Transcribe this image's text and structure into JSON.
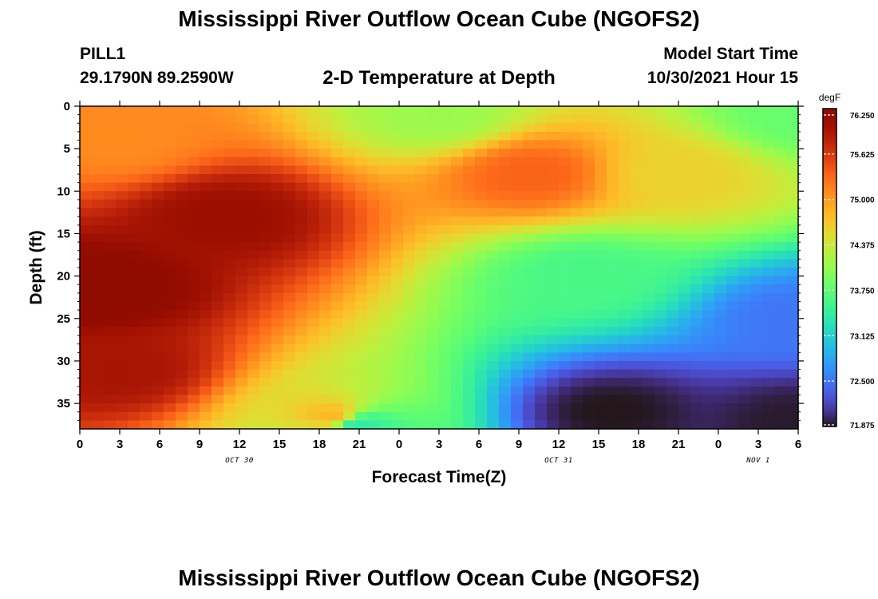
{
  "header": {
    "title": "Mississippi River Outflow Ocean Cube (NGOFS2)",
    "station_id": "PILL1",
    "coordinates": "29.1790N  89.2590W",
    "model_start_label": "Model Start Time",
    "model_start_value": "10/30/2021 Hour 15"
  },
  "footer": {
    "title": "Mississippi River Outflow Ocean Cube (NGOFS2)"
  },
  "chart_data": {
    "type": "heatmap",
    "title": "2-D Temperature at Depth",
    "xlabel": "Forecast Time(Z)",
    "ylabel": "Depth (ft)",
    "x_ticks": [
      "0",
      "3",
      "6",
      "9",
      "12",
      "15",
      "18",
      "21",
      "0",
      "3",
      "6",
      "9",
      "12",
      "15",
      "18",
      "21",
      "0",
      "3",
      "6"
    ],
    "x_range_hours_from_oct30_00z": [
      0,
      54
    ],
    "date_labels": [
      {
        "label": "OCT 30",
        "hour": 12
      },
      {
        "label": "OCT 31",
        "hour": 36
      },
      {
        "label": "NOV 1",
        "hour": 51
      }
    ],
    "y_ticks": [
      0,
      5,
      10,
      15,
      20,
      25,
      30,
      35
    ],
    "ylim": [
      0,
      38
    ],
    "y_inverted": true,
    "colorbar": {
      "unit": "degF",
      "min": 71.875,
      "max": 76.25,
      "ticks": [
        "76.250",
        "75.625",
        "75.000",
        "74.375",
        "73.750",
        "73.125",
        "72.500",
        "71.875"
      ],
      "colormap": "turbo"
    },
    "features": [
      {
        "hour": 1.5,
        "depth": 21.5,
        "temp": 76.25
      },
      {
        "hour": 3.0,
        "depth": 4.0,
        "temp": 75.1
      },
      {
        "hour": 11.0,
        "depth": 13.0,
        "temp": 76.05
      },
      {
        "hour": 3.0,
        "depth": 31.0,
        "temp": 75.95
      },
      {
        "hour": 19.0,
        "depth": 36.5,
        "temp": 74.8
      },
      {
        "hour": 21.0,
        "depth": 37.5,
        "temp": 73.4
      },
      {
        "hour": 27.0,
        "depth": 1.0,
        "temp": 74.1
      },
      {
        "hour": 34.0,
        "depth": 8.0,
        "temp": 75.35
      },
      {
        "hour": 38.0,
        "depth": 20.0,
        "temp": 73.6
      },
      {
        "hour": 40.0,
        "depth": 36.0,
        "temp": 71.875
      },
      {
        "hour": 45.0,
        "depth": 8.0,
        "temp": 74.6
      },
      {
        "hour": 54.0,
        "depth": 1.0,
        "temp": 73.8
      },
      {
        "hour": 54.0,
        "depth": 25.0,
        "temp": 72.5
      },
      {
        "hour": 54.0,
        "depth": 37.0,
        "temp": 71.9
      }
    ]
  }
}
